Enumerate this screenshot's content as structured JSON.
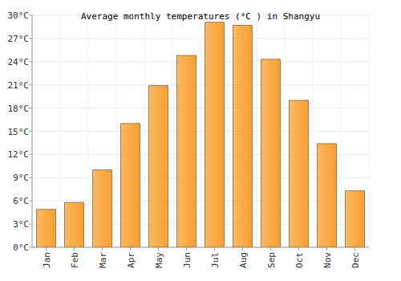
{
  "chart_data": {
    "type": "bar",
    "title": "Average monthly temperatures (°C ) in Shangyu",
    "categories": [
      "Jan",
      "Feb",
      "Mar",
      "Apr",
      "May",
      "Jun",
      "Jul",
      "Aug",
      "Sep",
      "Oct",
      "Nov",
      "Dec"
    ],
    "values": [
      4.9,
      5.8,
      10.0,
      16.0,
      20.9,
      24.8,
      29.1,
      28.7,
      24.3,
      19.0,
      13.4,
      7.3
    ],
    "color": "#f9a02f",
    "ylim": [
      0,
      30
    ],
    "yticks": [
      {
        "value": 0,
        "label": "0°C"
      },
      {
        "value": 3,
        "label": "3°C"
      },
      {
        "value": 6,
        "label": "6°C"
      },
      {
        "value": 9,
        "label": "9°C"
      },
      {
        "value": 12,
        "label": "12°C"
      },
      {
        "value": 15,
        "label": "15°C"
      },
      {
        "value": 18,
        "label": "18°C"
      },
      {
        "value": 21,
        "label": "21°C"
      },
      {
        "value": 24,
        "label": "24°C"
      },
      {
        "value": 27,
        "label": "27°C"
      },
      {
        "value": 30,
        "label": "30°C"
      }
    ],
    "grid": true
  }
}
